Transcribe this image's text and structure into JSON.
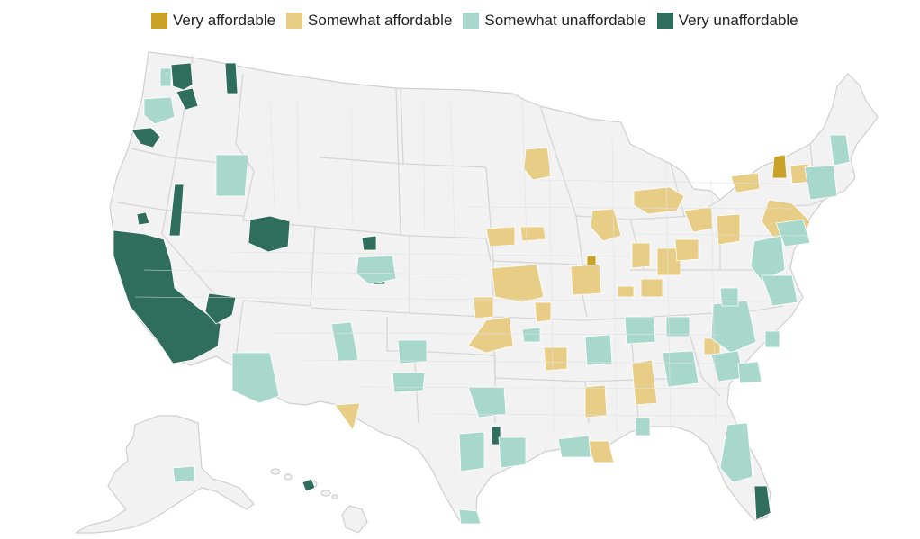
{
  "legend": {
    "items": [
      {
        "key": "very-affordable",
        "label": "Very affordable",
        "color": "#c9a227"
      },
      {
        "key": "somewhat-affordable",
        "label": "Somewhat affordable",
        "color": "#e8cd86"
      },
      {
        "key": "somewhat-unaffordable",
        "label": "Somewhat unaffordable",
        "color": "#a7d8cb"
      },
      {
        "key": "very-unaffordable",
        "label": "Very unaffordable",
        "color": "#2f6e5c"
      }
    ]
  },
  "map": {
    "base_color": "#f2f2f2",
    "border_color": "#cfcfcf",
    "regions": [
      "contiguous-us",
      "alaska",
      "hawaii"
    ]
  }
}
